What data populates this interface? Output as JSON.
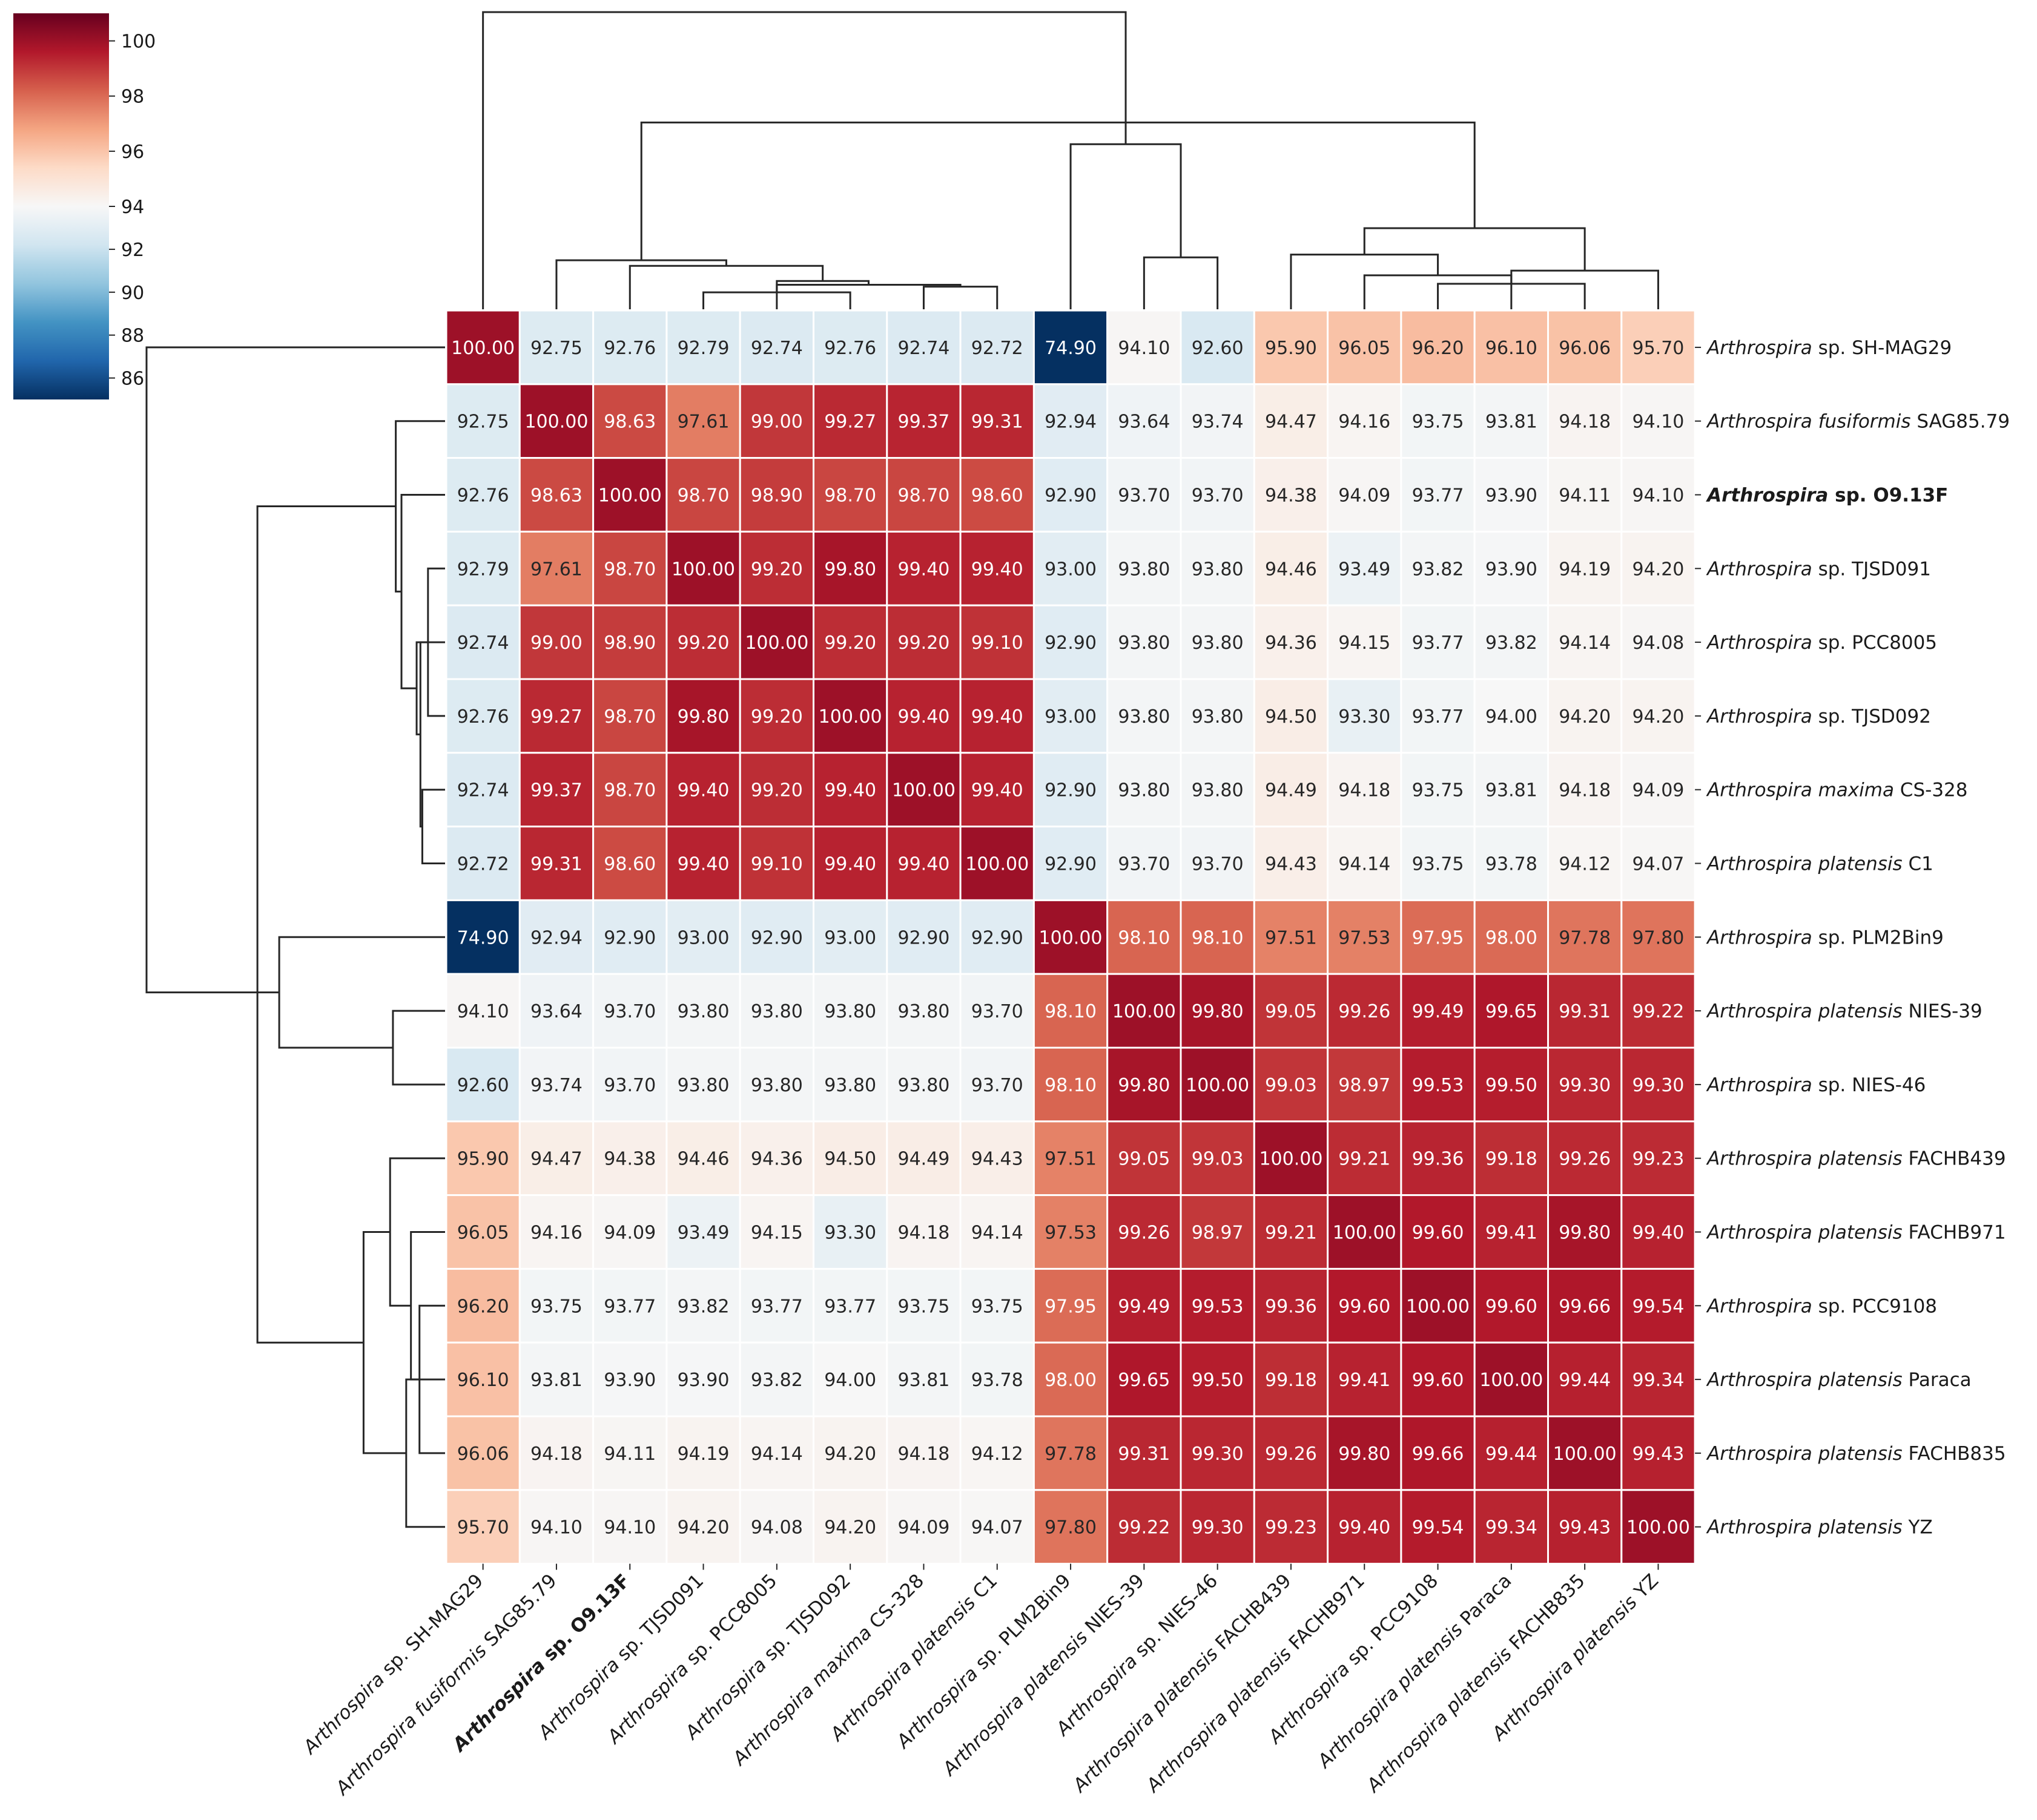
{
  "chart_data": {
    "type": "heatmap",
    "title": "",
    "xlabel": "",
    "ylabel": "",
    "colorbar": {
      "min": 85,
      "max": 101,
      "ticks": [
        86,
        88,
        90,
        92,
        94,
        96,
        98,
        100
      ],
      "colormap": "RdBu_r",
      "center": 94
    },
    "colors": {
      "low": "#053061",
      "mid": "#f7f7f7",
      "high": "#b2182b",
      "text_dark": "#262626",
      "text_light": "#ffffff",
      "lines": "#262626"
    },
    "labels": [
      {
        "genus": "Arthrospira",
        "mid": "sp.",
        "strain": "SH-MAG29",
        "bold": false
      },
      {
        "genus": "Arthrospira",
        "mid": "fusiformis",
        "strain": "SAG85.79",
        "bold": false
      },
      {
        "genus": "Arthrospira",
        "mid": "sp.",
        "strain": "O9.13F",
        "bold": true
      },
      {
        "genus": "Arthrospira",
        "mid": "sp.",
        "strain": "TJSD091",
        "bold": false
      },
      {
        "genus": "Arthrospira",
        "mid": "sp.",
        "strain": "PCC8005",
        "bold": false
      },
      {
        "genus": "Arthrospira",
        "mid": "sp.",
        "strain": "TJSD092",
        "bold": false
      },
      {
        "genus": "Arthrospira",
        "mid": "maxima",
        "strain": "CS-328",
        "bold": false
      },
      {
        "genus": "Arthrospira",
        "mid": "platensis",
        "strain": "C1",
        "bold": false
      },
      {
        "genus": "Arthrospira",
        "mid": "sp.",
        "strain": "PLM2Bin9",
        "bold": false
      },
      {
        "genus": "Arthrospira",
        "mid": "platensis",
        "strain": "NIES-39",
        "bold": false
      },
      {
        "genus": "Arthrospira",
        "mid": "sp.",
        "strain": "NIES-46",
        "bold": false
      },
      {
        "genus": "Arthrospira",
        "mid": "platensis",
        "strain": "FACHB439",
        "bold": false
      },
      {
        "genus": "Arthrospira",
        "mid": "platensis",
        "strain": "FACHB971",
        "bold": false
      },
      {
        "genus": "Arthrospira",
        "mid": "sp.",
        "strain": "PCC9108",
        "bold": false
      },
      {
        "genus": "Arthrospira",
        "mid": "platensis",
        "strain": "Paraca",
        "bold": false
      },
      {
        "genus": "Arthrospira",
        "mid": "platensis",
        "strain": "FACHB835",
        "bold": false
      },
      {
        "genus": "Arthrospira",
        "mid": "platensis",
        "strain": "YZ",
        "bold": false
      }
    ],
    "values": [
      [
        "100.00",
        "92.75",
        "92.76",
        "92.79",
        "92.74",
        "92.76",
        "92.74",
        "92.72",
        "74.90",
        "94.10",
        "92.60",
        "95.90",
        "96.05",
        "96.20",
        "96.10",
        "96.06",
        "95.70"
      ],
      [
        "92.75",
        "100.00",
        "98.63",
        "97.61",
        "99.00",
        "99.27",
        "99.37",
        "99.31",
        "92.94",
        "93.64",
        "93.74",
        "94.47",
        "94.16",
        "93.75",
        "93.81",
        "94.18",
        "94.10"
      ],
      [
        "92.76",
        "98.63",
        "100.00",
        "98.70",
        "98.90",
        "98.70",
        "98.70",
        "98.60",
        "92.90",
        "93.70",
        "93.70",
        "94.38",
        "94.09",
        "93.77",
        "93.90",
        "94.11",
        "94.10"
      ],
      [
        "92.79",
        "97.61",
        "98.70",
        "100.00",
        "99.20",
        "99.80",
        "99.40",
        "99.40",
        "93.00",
        "93.80",
        "93.80",
        "94.46",
        "93.49",
        "93.82",
        "93.90",
        "94.19",
        "94.20"
      ],
      [
        "92.74",
        "99.00",
        "98.90",
        "99.20",
        "100.00",
        "99.20",
        "99.20",
        "99.10",
        "92.90",
        "93.80",
        "93.80",
        "94.36",
        "94.15",
        "93.77",
        "93.82",
        "94.14",
        "94.08"
      ],
      [
        "92.76",
        "99.27",
        "98.70",
        "99.80",
        "99.20",
        "100.00",
        "99.40",
        "99.40",
        "93.00",
        "93.80",
        "93.80",
        "94.50",
        "93.30",
        "93.77",
        "94.00",
        "94.20",
        "94.20"
      ],
      [
        "92.74",
        "99.37",
        "98.70",
        "99.40",
        "99.20",
        "99.40",
        "100.00",
        "99.40",
        "92.90",
        "93.80",
        "93.80",
        "94.49",
        "94.18",
        "93.75",
        "93.81",
        "94.18",
        "94.09"
      ],
      [
        "92.72",
        "99.31",
        "98.60",
        "99.40",
        "99.10",
        "99.40",
        "99.40",
        "100.00",
        "92.90",
        "93.70",
        "93.70",
        "94.43",
        "94.14",
        "93.75",
        "93.78",
        "94.12",
        "94.07"
      ],
      [
        "74.90",
        "92.94",
        "92.90",
        "93.00",
        "92.90",
        "93.00",
        "92.90",
        "92.90",
        "100.00",
        "98.10",
        "98.10",
        "97.51",
        "97.53",
        "97.95",
        "98.00",
        "97.78",
        "97.80"
      ],
      [
        "94.10",
        "93.64",
        "93.70",
        "93.80",
        "93.80",
        "93.80",
        "93.80",
        "93.70",
        "98.10",
        "100.00",
        "99.80",
        "99.05",
        "99.26",
        "99.49",
        "99.65",
        "99.31",
        "99.22"
      ],
      [
        "92.60",
        "93.74",
        "93.70",
        "93.80",
        "93.80",
        "93.80",
        "93.80",
        "93.70",
        "98.10",
        "99.80",
        "100.00",
        "99.03",
        "98.97",
        "99.53",
        "99.50",
        "99.30",
        "99.30"
      ],
      [
        "95.90",
        "94.47",
        "94.38",
        "94.46",
        "94.36",
        "94.50",
        "94.49",
        "94.43",
        "97.51",
        "99.05",
        "99.03",
        "100.00",
        "99.21",
        "99.36",
        "99.18",
        "99.26",
        "99.23"
      ],
      [
        "96.05",
        "94.16",
        "94.09",
        "93.49",
        "94.15",
        "93.30",
        "94.18",
        "94.14",
        "97.53",
        "99.26",
        "98.97",
        "99.21",
        "100.00",
        "99.60",
        "99.41",
        "99.80",
        "99.40"
      ],
      [
        "96.20",
        "93.75",
        "93.77",
        "93.82",
        "93.77",
        "93.77",
        "93.75",
        "93.75",
        "97.95",
        "99.49",
        "99.53",
        "99.36",
        "99.60",
        "100.00",
        "99.60",
        "99.66",
        "99.54"
      ],
      [
        "96.10",
        "93.81",
        "93.90",
        "93.90",
        "93.82",
        "94.00",
        "93.81",
        "93.78",
        "98.00",
        "99.65",
        "99.50",
        "99.18",
        "99.41",
        "99.60",
        "100.00",
        "99.44",
        "99.34"
      ],
      [
        "96.06",
        "94.18",
        "94.11",
        "94.19",
        "94.14",
        "94.20",
        "94.18",
        "94.12",
        "97.78",
        "99.31",
        "99.30",
        "99.26",
        "99.80",
        "99.66",
        "99.44",
        "100.00",
        "99.43"
      ],
      [
        "95.70",
        "94.10",
        "94.10",
        "94.20",
        "94.08",
        "94.20",
        "94.09",
        "94.07",
        "97.80",
        "99.22",
        "99.30",
        "99.23",
        "99.40",
        "99.54",
        "99.34",
        "99.43",
        "100.00"
      ]
    ],
    "dendrogram_top": [
      [
        0.5,
        0,
        8.5,
        57.5
      ],
      [
        2.5,
        0,
        12,
        17.5
      ],
      [
        4.5,
        0,
        8,
        9
      ],
      [
        6.5,
        0,
        5,
        6.5
      ],
      [
        7.5,
        0,
        2.5,
        3.5
      ],
      [
        1.5,
        0,
        2,
        3
      ],
      [
        11.5,
        0,
        14,
        4
      ],
      [
        13.5,
        0,
        9,
        10
      ],
      [
        15.5,
        0,
        9,
        8.5
      ],
      [
        16.5,
        0,
        7,
        8.5
      ],
      [
        9.5,
        0,
        6,
        6.5
      ],
      [
        10.5,
        0,
        5,
        5
      ]
    ]
  }
}
